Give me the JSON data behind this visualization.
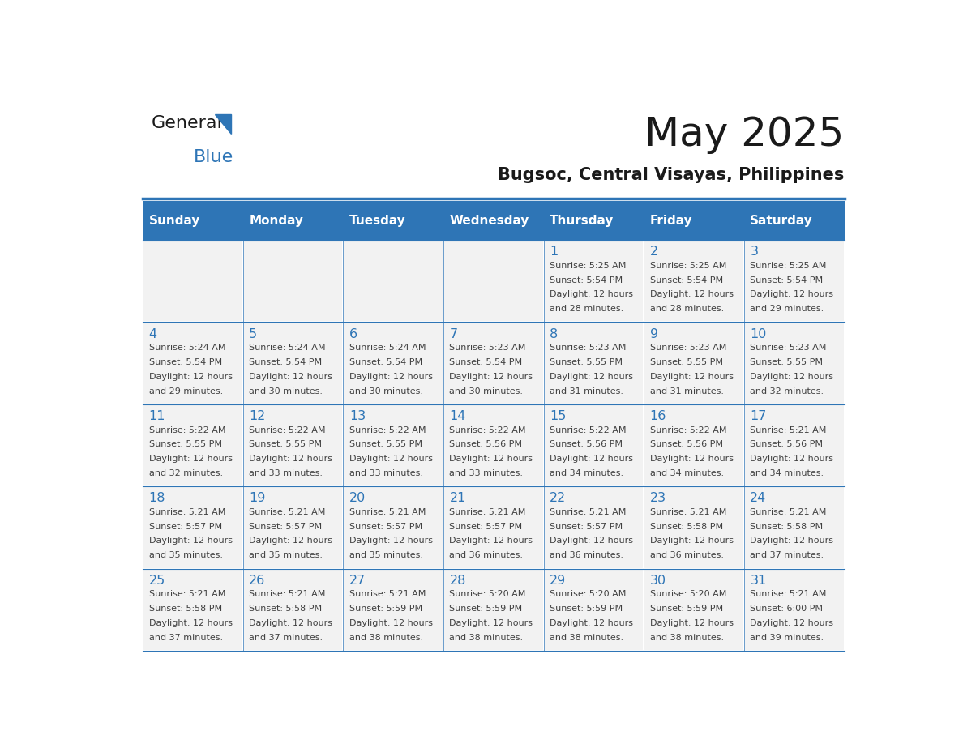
{
  "title": "May 2025",
  "subtitle": "Bugsoc, Central Visayas, Philippines",
  "header_color": "#2E75B6",
  "header_text_color": "#FFFFFF",
  "cell_bg_color": "#F2F2F2",
  "day_number_color": "#2E75B6",
  "text_color": "#404040",
  "border_color": "#2E75B6",
  "days_of_week": [
    "Sunday",
    "Monday",
    "Tuesday",
    "Wednesday",
    "Thursday",
    "Friday",
    "Saturday"
  ],
  "calendar_data": [
    [
      {
        "day": 0,
        "sunrise": "",
        "sunset": "",
        "daylight": ""
      },
      {
        "day": 0,
        "sunrise": "",
        "sunset": "",
        "daylight": ""
      },
      {
        "day": 0,
        "sunrise": "",
        "sunset": "",
        "daylight": ""
      },
      {
        "day": 0,
        "sunrise": "",
        "sunset": "",
        "daylight": ""
      },
      {
        "day": 1,
        "sunrise": "5:25 AM",
        "sunset": "5:54 PM",
        "daylight": "12 hours and 28 minutes."
      },
      {
        "day": 2,
        "sunrise": "5:25 AM",
        "sunset": "5:54 PM",
        "daylight": "12 hours and 28 minutes."
      },
      {
        "day": 3,
        "sunrise": "5:25 AM",
        "sunset": "5:54 PM",
        "daylight": "12 hours and 29 minutes."
      }
    ],
    [
      {
        "day": 4,
        "sunrise": "5:24 AM",
        "sunset": "5:54 PM",
        "daylight": "12 hours and 29 minutes."
      },
      {
        "day": 5,
        "sunrise": "5:24 AM",
        "sunset": "5:54 PM",
        "daylight": "12 hours and 30 minutes."
      },
      {
        "day": 6,
        "sunrise": "5:24 AM",
        "sunset": "5:54 PM",
        "daylight": "12 hours and 30 minutes."
      },
      {
        "day": 7,
        "sunrise": "5:23 AM",
        "sunset": "5:54 PM",
        "daylight": "12 hours and 30 minutes."
      },
      {
        "day": 8,
        "sunrise": "5:23 AM",
        "sunset": "5:55 PM",
        "daylight": "12 hours and 31 minutes."
      },
      {
        "day": 9,
        "sunrise": "5:23 AM",
        "sunset": "5:55 PM",
        "daylight": "12 hours and 31 minutes."
      },
      {
        "day": 10,
        "sunrise": "5:23 AM",
        "sunset": "5:55 PM",
        "daylight": "12 hours and 32 minutes."
      }
    ],
    [
      {
        "day": 11,
        "sunrise": "5:22 AM",
        "sunset": "5:55 PM",
        "daylight": "12 hours and 32 minutes."
      },
      {
        "day": 12,
        "sunrise": "5:22 AM",
        "sunset": "5:55 PM",
        "daylight": "12 hours and 33 minutes."
      },
      {
        "day": 13,
        "sunrise": "5:22 AM",
        "sunset": "5:55 PM",
        "daylight": "12 hours and 33 minutes."
      },
      {
        "day": 14,
        "sunrise": "5:22 AM",
        "sunset": "5:56 PM",
        "daylight": "12 hours and 33 minutes."
      },
      {
        "day": 15,
        "sunrise": "5:22 AM",
        "sunset": "5:56 PM",
        "daylight": "12 hours and 34 minutes."
      },
      {
        "day": 16,
        "sunrise": "5:22 AM",
        "sunset": "5:56 PM",
        "daylight": "12 hours and 34 minutes."
      },
      {
        "day": 17,
        "sunrise": "5:21 AM",
        "sunset": "5:56 PM",
        "daylight": "12 hours and 34 minutes."
      }
    ],
    [
      {
        "day": 18,
        "sunrise": "5:21 AM",
        "sunset": "5:57 PM",
        "daylight": "12 hours and 35 minutes."
      },
      {
        "day": 19,
        "sunrise": "5:21 AM",
        "sunset": "5:57 PM",
        "daylight": "12 hours and 35 minutes."
      },
      {
        "day": 20,
        "sunrise": "5:21 AM",
        "sunset": "5:57 PM",
        "daylight": "12 hours and 35 minutes."
      },
      {
        "day": 21,
        "sunrise": "5:21 AM",
        "sunset": "5:57 PM",
        "daylight": "12 hours and 36 minutes."
      },
      {
        "day": 22,
        "sunrise": "5:21 AM",
        "sunset": "5:57 PM",
        "daylight": "12 hours and 36 minutes."
      },
      {
        "day": 23,
        "sunrise": "5:21 AM",
        "sunset": "5:58 PM",
        "daylight": "12 hours and 36 minutes."
      },
      {
        "day": 24,
        "sunrise": "5:21 AM",
        "sunset": "5:58 PM",
        "daylight": "12 hours and 37 minutes."
      }
    ],
    [
      {
        "day": 25,
        "sunrise": "5:21 AM",
        "sunset": "5:58 PM",
        "daylight": "12 hours and 37 minutes."
      },
      {
        "day": 26,
        "sunrise": "5:21 AM",
        "sunset": "5:58 PM",
        "daylight": "12 hours and 37 minutes."
      },
      {
        "day": 27,
        "sunrise": "5:21 AM",
        "sunset": "5:59 PM",
        "daylight": "12 hours and 38 minutes."
      },
      {
        "day": 28,
        "sunrise": "5:20 AM",
        "sunset": "5:59 PM",
        "daylight": "12 hours and 38 minutes."
      },
      {
        "day": 29,
        "sunrise": "5:20 AM",
        "sunset": "5:59 PM",
        "daylight": "12 hours and 38 minutes."
      },
      {
        "day": 30,
        "sunrise": "5:20 AM",
        "sunset": "5:59 PM",
        "daylight": "12 hours and 38 minutes."
      },
      {
        "day": 31,
        "sunrise": "5:21 AM",
        "sunset": "6:00 PM",
        "daylight": "12 hours and 39 minutes."
      }
    ]
  ]
}
